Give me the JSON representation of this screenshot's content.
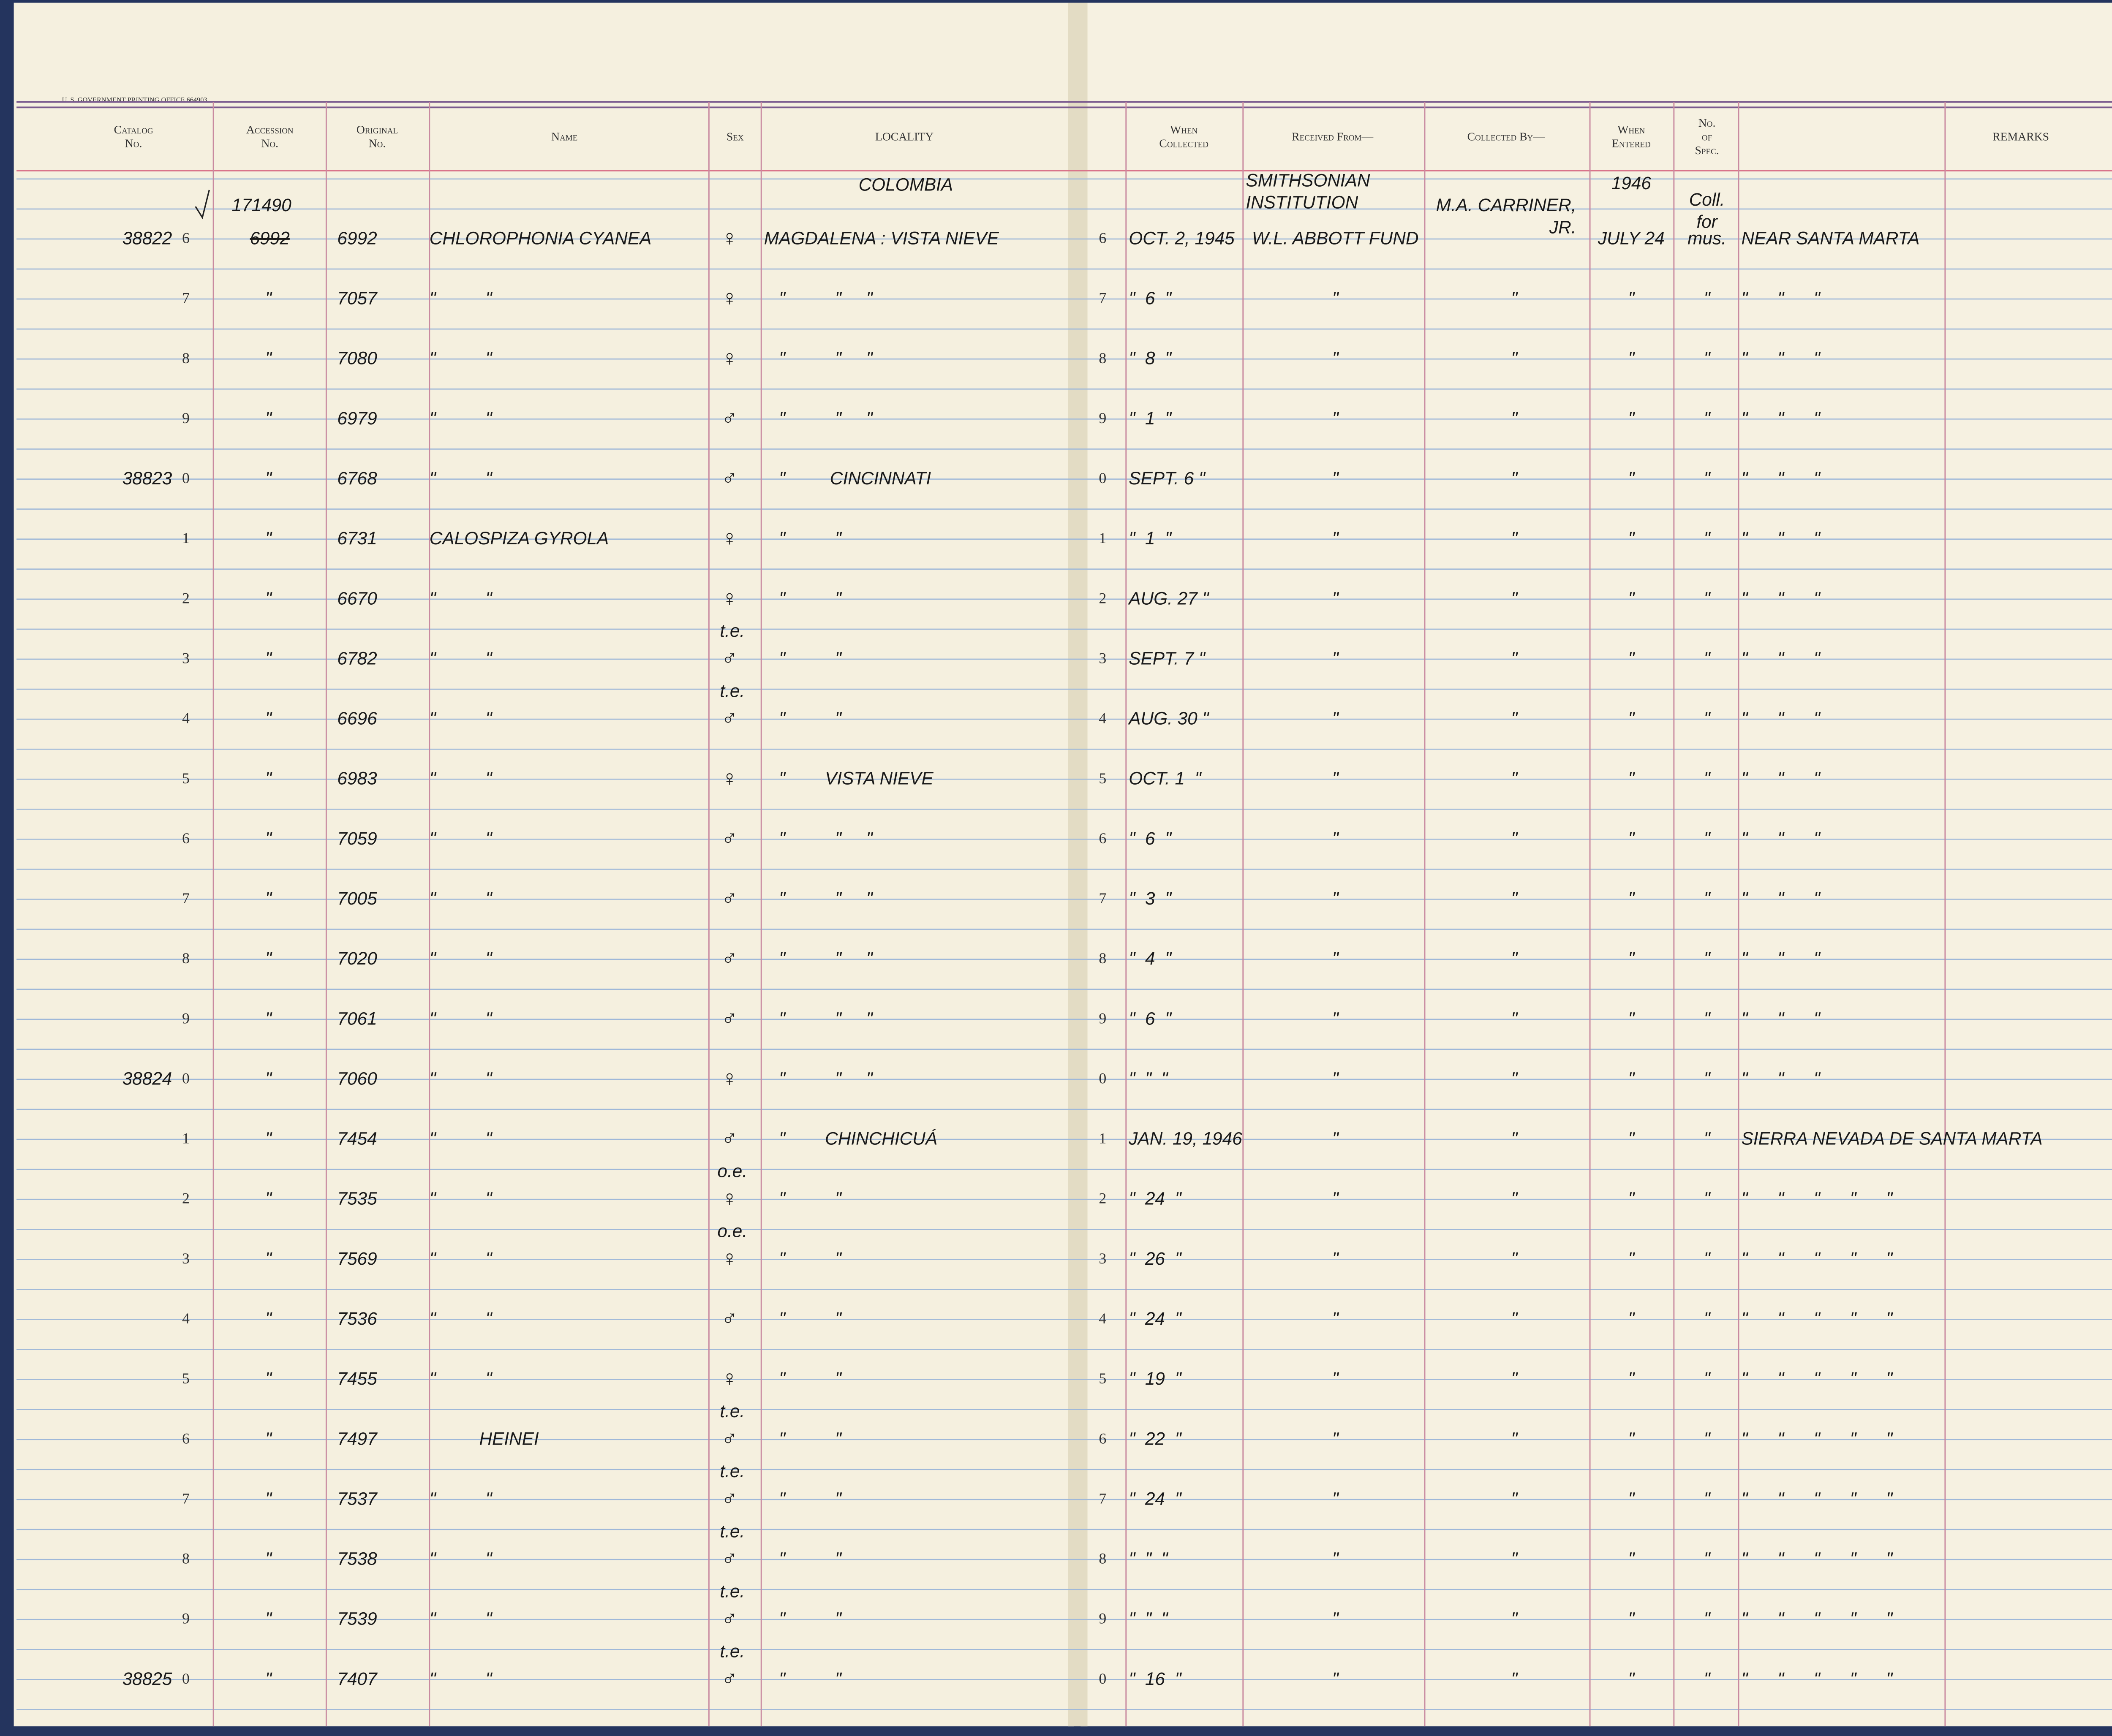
{
  "imprint": "U. S. GOVERNMENT PRINTING OFFICE 664903",
  "headers": [
    {
      "key": "catalog",
      "lines": [
        "Catalog",
        "No."
      ]
    },
    {
      "key": "accession",
      "lines": [
        "Accession",
        "No."
      ]
    },
    {
      "key": "original",
      "lines": [
        "Original",
        "No."
      ]
    },
    {
      "key": "name",
      "lines": [
        "Name"
      ]
    },
    {
      "key": "sex",
      "lines": [
        "Sex"
      ]
    },
    {
      "key": "locality",
      "lines": [
        "LOCALITY"
      ]
    },
    {
      "key": "collected",
      "lines": [
        "When",
        "Collected"
      ]
    },
    {
      "key": "received",
      "lines": [
        "Received From—"
      ]
    },
    {
      "key": "collector",
      "lines": [
        "Collected By—"
      ]
    },
    {
      "key": "entered",
      "lines": [
        "When",
        "Entered"
      ]
    },
    {
      "key": "spec",
      "lines": [
        "No.",
        "of",
        "Spec."
      ]
    },
    {
      "key": "remarks",
      "lines": [
        "REMARKS"
      ]
    }
  ],
  "notes": {
    "accession_note": "171490",
    "locality_note": "COLOMBIA",
    "received_note": [
      "SMITHSONIAN",
      "INSTITUTION"
    ],
    "collector_note": [
      "M.A. CARRINER,",
      "JR."
    ],
    "entered_note": "1946",
    "spec_note": [
      "Coll.",
      "for"
    ]
  },
  "rows": [
    {
      "catalog": "38822",
      "digit": "6",
      "accession_struck": "6992",
      "original": "6992",
      "name": "CHLOROPHONIA CYANEA",
      "sex": "♀",
      "locality": "MAGDALENA : VISTA NIEVE",
      "digit2": "6",
      "collected": "OCT. 2, 1945",
      "received": "W.L. ABBOTT FUND",
      "entered": "JULY 24",
      "spec": "mus.",
      "remarks": "NEAR SANTA MARTA"
    },
    {
      "digit": "7",
      "accession": "\"",
      "original": "7057",
      "name": "\"          \"",
      "sex": "♀",
      "locality": "   \"          \"     \"",
      "digit2": "7",
      "collected": "\"  6  \"",
      "received": "\"",
      "collector": "\"",
      "entered": "\"",
      "spec": "\"",
      "remarks": "\"      \"      \""
    },
    {
      "digit": "8",
      "accession": "\"",
      "original": "7080",
      "name": "\"          \"",
      "sex": "♀",
      "locality": "   \"          \"     \"",
      "digit2": "8",
      "collected": "\"  8  \"",
      "received": "\"",
      "collector": "\"",
      "entered": "\"",
      "spec": "\"",
      "remarks": "\"      \"      \""
    },
    {
      "digit": "9",
      "accession": "\"",
      "original": "6979",
      "name": "\"          \"",
      "sex": "♂",
      "locality": "   \"          \"     \"",
      "digit2": "9",
      "collected": "\"  1  \"",
      "received": "\"",
      "collector": "\"",
      "entered": "\"",
      "spec": "\"",
      "remarks": "\"      \"      \""
    },
    {
      "catalog": "38823",
      "digit": "0",
      "accession": "\"",
      "original": "6768",
      "name": "\"          \"",
      "sex": "♂",
      "locality": "   \"         CINCINNATI",
      "digit2": "0",
      "collected": "SEPT. 6 \"",
      "received": "\"",
      "collector": "\"",
      "entered": "\"",
      "spec": "\"",
      "remarks": "\"      \"      \""
    },
    {
      "digit": "1",
      "accession": "\"",
      "original": "6731",
      "name": "CALOSPIZA GYROLA",
      "sex": "♀",
      "locality": "   \"          \"",
      "digit2": "1",
      "collected": "\"  1  \"",
      "received": "\"",
      "collector": "\"",
      "entered": "\"",
      "spec": "\"",
      "remarks": "\"      \"      \""
    },
    {
      "digit": "2",
      "accession": "\"",
      "original": "6670",
      "name": "\"          \"",
      "sex": "♀",
      "locality": "   \"          \"",
      "digit2": "2",
      "collected": "AUG. 27 \"",
      "received": "\"",
      "collector": "\"",
      "entered": "\"",
      "spec": "\"",
      "remarks": "\"      \"      \""
    },
    {
      "digit": "3",
      "accession": "\"",
      "original": "6782",
      "name": "\"          \"",
      "sex_note": "t.e.",
      "sex": "♂",
      "locality": "   \"          \"",
      "digit2": "3",
      "collected": "SEPT. 7 \"",
      "received": "\"",
      "collector": "\"",
      "entered": "\"",
      "spec": "\"",
      "remarks": "\"      \"      \""
    },
    {
      "digit": "4",
      "accession": "\"",
      "original": "6696",
      "name": "\"          \"",
      "sex_note": "t.e.",
      "sex": "♂",
      "locality": "   \"          \"",
      "digit2": "4",
      "collected": "AUG. 30 \"",
      "received": "\"",
      "collector": "\"",
      "entered": "\"",
      "spec": "\"",
      "remarks": "\"      \"      \""
    },
    {
      "digit": "5",
      "accession": "\"",
      "original": "6983",
      "name": "\"          \"",
      "sex": "♀",
      "locality": "   \"        VISTA NIEVE",
      "digit2": "5",
      "collected": "OCT. 1  \"",
      "received": "\"",
      "collector": "\"",
      "entered": "\"",
      "spec": "\"",
      "remarks": "\"      \"      \""
    },
    {
      "digit": "6",
      "accession": "\"",
      "original": "7059",
      "name": "\"          \"",
      "sex": "♂",
      "locality": "   \"          \"     \"",
      "digit2": "6",
      "collected": "\"  6  \"",
      "received": "\"",
      "collector": "\"",
      "entered": "\"",
      "spec": "\"",
      "remarks": "\"      \"      \""
    },
    {
      "digit": "7",
      "accession": "\"",
      "original": "7005",
      "name": "\"          \"",
      "sex": "♂",
      "locality": "   \"          \"     \"",
      "digit2": "7",
      "collected": "\"  3  \"",
      "received": "\"",
      "collector": "\"",
      "entered": "\"",
      "spec": "\"",
      "remarks": "\"      \"      \""
    },
    {
      "digit": "8",
      "accession": "\"",
      "original": "7020",
      "name": "\"          \"",
      "sex": "♂",
      "locality": "   \"          \"     \"",
      "digit2": "8",
      "collected": "\"  4  \"",
      "received": "\"",
      "collector": "\"",
      "entered": "\"",
      "spec": "\"",
      "remarks": "\"      \"      \""
    },
    {
      "digit": "9",
      "accession": "\"",
      "original": "7061",
      "name": "\"          \"",
      "sex": "♂",
      "locality": "   \"          \"     \"",
      "digit2": "9",
      "collected": "\"  6  \"",
      "received": "\"",
      "collector": "\"",
      "entered": "\"",
      "spec": "\"",
      "remarks": "\"      \"      \""
    },
    {
      "catalog": "38824",
      "digit": "0",
      "accession": "\"",
      "original": "7060",
      "name": "\"          \"",
      "sex": "♀",
      "locality": "   \"          \"     \"",
      "digit2": "0",
      "collected": "\"  \"  \"",
      "received": "\"",
      "collector": "\"",
      "entered": "\"",
      "spec": "\"",
      "remarks": "\"      \"      \""
    },
    {
      "digit": "1",
      "accession": "\"",
      "original": "7454",
      "name": "\"          \"",
      "sex": "♂",
      "locality": "   \"        CHINCHICUÁ",
      "digit2": "1",
      "collected": "JAN. 19, 1946",
      "received": "\"",
      "collector": "\"",
      "entered": "\"",
      "spec": "\"",
      "remarks": "SIERRA NEVADA DE SANTA MARTA"
    },
    {
      "digit": "2",
      "accession": "\"",
      "original": "7535",
      "name": "\"          \"",
      "sex_note": "o.e.",
      "sex": "♀",
      "locality": "   \"          \"",
      "digit2": "2",
      "collected": "\"  24  \"",
      "received": "\"",
      "collector": "\"",
      "entered": "\"",
      "spec": "\"",
      "remarks": "\"      \"      \"      \"      \""
    },
    {
      "digit": "3",
      "accession": "\"",
      "original": "7569",
      "name": "\"          \"",
      "sex_note": "o.e.",
      "sex": "♀",
      "locality": "   \"          \"",
      "digit2": "3",
      "collected": "\"  26  \"",
      "received": "\"",
      "collector": "\"",
      "entered": "\"",
      "spec": "\"",
      "remarks": "\"      \"      \"      \"      \""
    },
    {
      "digit": "4",
      "accession": "\"",
      "original": "7536",
      "name": "\"          \"",
      "sex": "♂",
      "locality": "   \"          \"",
      "digit2": "4",
      "collected": "\"  24  \"",
      "received": "\"",
      "collector": "\"",
      "entered": "\"",
      "spec": "\"",
      "remarks": "\"      \"      \"      \"      \""
    },
    {
      "digit": "5",
      "accession": "\"",
      "original": "7455",
      "name": "\"          \"",
      "sex": "♀",
      "locality": "   \"          \"",
      "digit2": "5",
      "collected": "\"  19  \"",
      "received": "\"",
      "collector": "\"",
      "entered": "\"",
      "spec": "\"",
      "remarks": "\"      \"      \"      \"      \""
    },
    {
      "digit": "6",
      "accession": "\"",
      "original": "7497",
      "name": "          HEINEI",
      "sex_note": "t.e.",
      "sex": "♂",
      "locality": "   \"          \"",
      "digit2": "6",
      "collected": "\"  22  \"",
      "received": "\"",
      "collector": "\"",
      "entered": "\"",
      "spec": "\"",
      "remarks": "\"      \"      \"      \"      \""
    },
    {
      "digit": "7",
      "accession": "\"",
      "original": "7537",
      "name": "\"          \"",
      "sex_note": "t.e.",
      "sex": "♂",
      "locality": "   \"          \"",
      "digit2": "7",
      "collected": "\"  24  \"",
      "received": "\"",
      "collector": "\"",
      "entered": "\"",
      "spec": "\"",
      "remarks": "\"      \"      \"      \"      \""
    },
    {
      "digit": "8",
      "accession": "\"",
      "original": "7538",
      "name": "\"          \"",
      "sex_note": "t.e.",
      "sex": "♂",
      "locality": "   \"          \"",
      "digit2": "8",
      "collected": "\"  \"  \"",
      "received": "\"",
      "collector": "\"",
      "entered": "\"",
      "spec": "\"",
      "remarks": "\"      \"      \"      \"      \""
    },
    {
      "digit": "9",
      "accession": "\"",
      "original": "7539",
      "name": "\"          \"",
      "sex_note": "t.e.",
      "sex": "♂",
      "locality": "   \"          \"",
      "digit2": "9",
      "collected": "\"  \"  \"",
      "received": "\"",
      "collector": "\"",
      "entered": "\"",
      "spec": "\"",
      "remarks": "\"      \"      \"      \"      \""
    },
    {
      "catalog": "38825",
      "digit": "0",
      "accession": "\"",
      "original": "7407",
      "name": "\"          \"",
      "sex_note": "t.e.",
      "sex": "♂",
      "locality": "   \"          \"",
      "digit2": "0",
      "collected": "\"  16  \"",
      "received": "\"",
      "collector": "\"",
      "entered": "\"",
      "spec": "\"",
      "remarks": "\"      \"      \"      \"      \""
    }
  ]
}
